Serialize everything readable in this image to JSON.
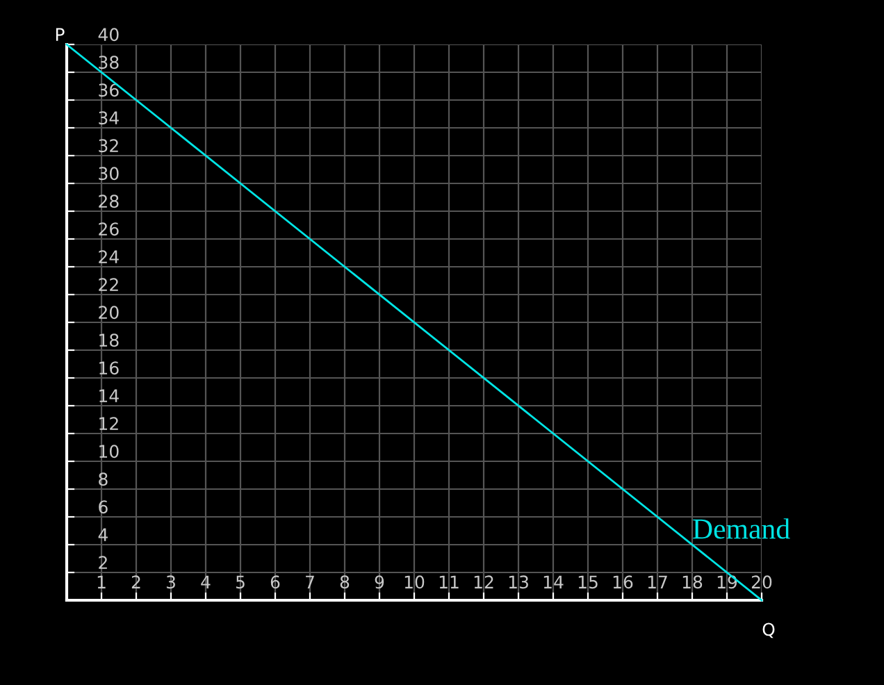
{
  "chart_data": {
    "type": "line",
    "xlabel": "Q",
    "ylabel": "P",
    "x": [
      0,
      20
    ],
    "series": [
      {
        "color": "#00e5e5",
        "values": [
          40,
          0
        ]
      }
    ],
    "annotations": [
      {
        "text": "Demand",
        "x": 18,
        "y": 4
      }
    ],
    "xlim": [
      0,
      20
    ],
    "ylim": [
      0,
      40
    ],
    "xticks": [
      {
        "value": 0,
        "label": null
      },
      1,
      2,
      3,
      4,
      5,
      6,
      7,
      8,
      9,
      10,
      11,
      12,
      13,
      14,
      15,
      16,
      17,
      18,
      19,
      20
    ],
    "yticks": [
      {
        "value": 0,
        "label": null
      },
      2,
      4,
      6,
      8,
      10,
      12,
      14,
      16,
      18,
      20,
      22,
      24,
      26,
      28,
      30,
      32,
      34,
      36,
      38,
      40
    ],
    "grid": true,
    "legend": false,
    "marker": "none",
    "line_style": "solid"
  }
}
